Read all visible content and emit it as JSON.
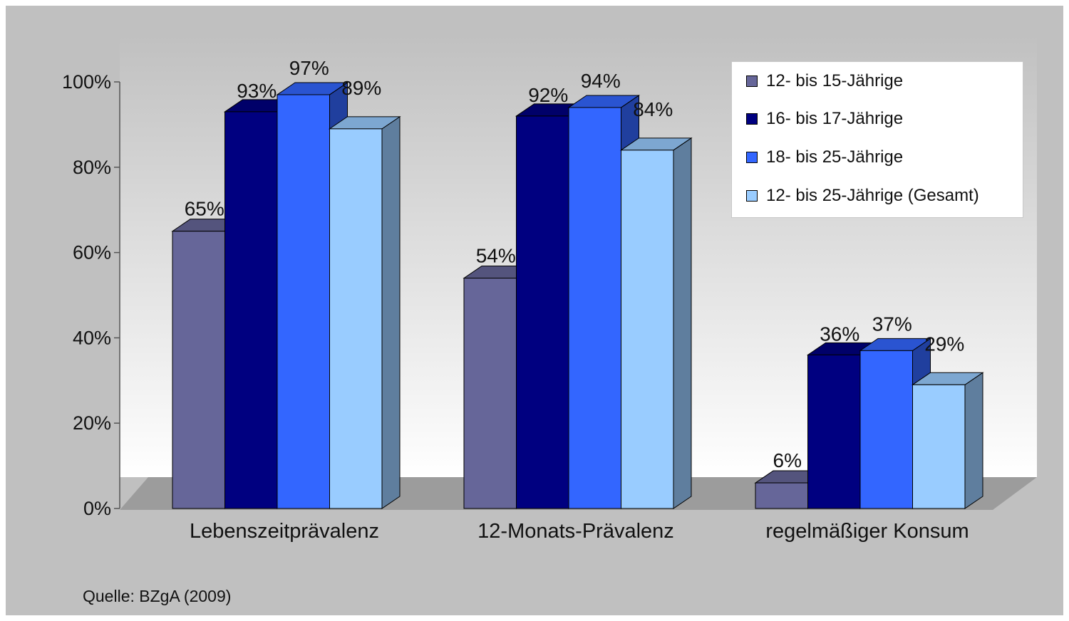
{
  "chart_data": {
    "type": "bar",
    "style": "3d-clustered-column",
    "categories": [
      "Lebenszeitprävalenz",
      "12-Monats-Prävalenz",
      "regelmäßiger Konsum"
    ],
    "series": [
      {
        "name": "12- bis 15-Jährige",
        "values": [
          65,
          54,
          6
        ],
        "color": "#666699"
      },
      {
        "name": "16- bis 17-Jährige",
        "values": [
          93,
          92,
          36
        ],
        "color": "#000080"
      },
      {
        "name": "18- bis 25-Jährige",
        "values": [
          97,
          94,
          37
        ],
        "color": "#3366ff"
      },
      {
        "name": "12- bis 25-Jährige (Gesamt)",
        "values": [
          89,
          84,
          29
        ],
        "color": "#99ccff"
      }
    ],
    "value_labels": [
      [
        "65%",
        "54%",
        "6%"
      ],
      [
        "93%",
        "92%",
        "36%"
      ],
      [
        "97%",
        "94%",
        "37%"
      ],
      [
        "89%",
        "84%",
        "29%"
      ]
    ],
    "y_ticks": [
      "0%",
      "20%",
      "40%",
      "60%",
      "80%",
      "100%"
    ],
    "ylim": [
      0,
      100
    ],
    "legend_position": "top-right",
    "grid": false,
    "background_color": "#c0c0c0",
    "source": "Quelle: BZgA (2009)"
  }
}
